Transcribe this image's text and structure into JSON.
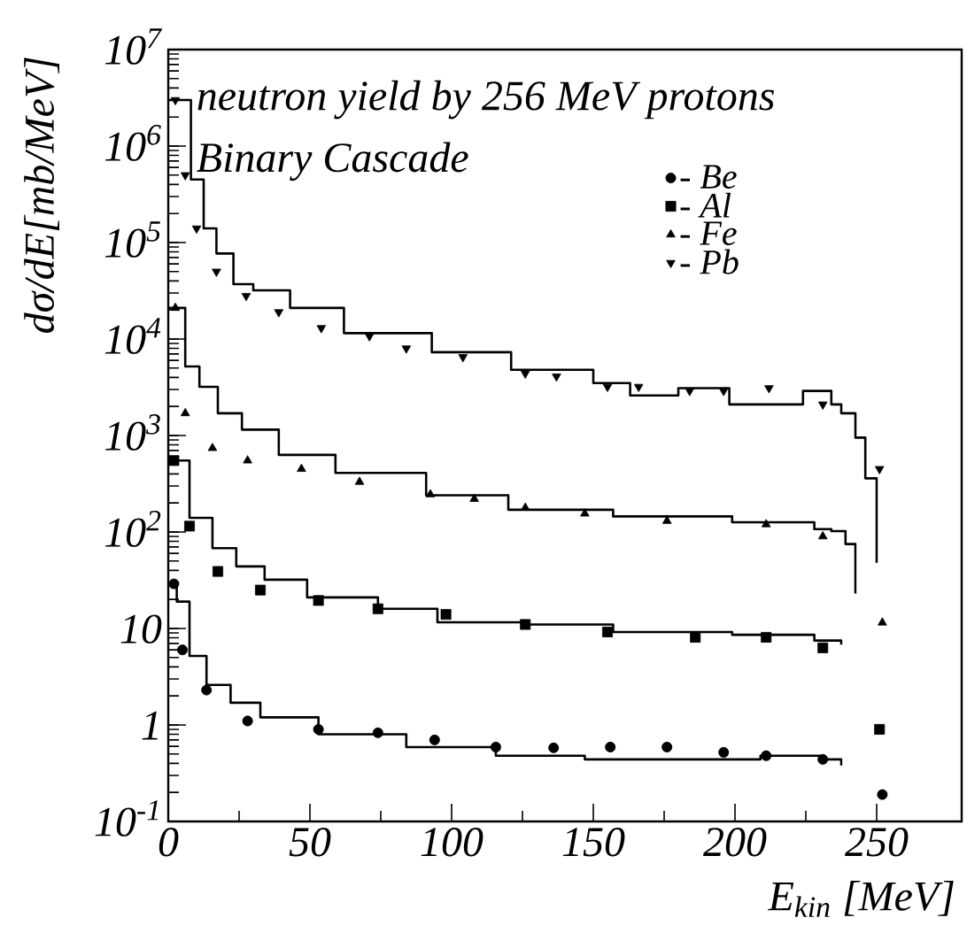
{
  "chart_data": {
    "type": "scatter",
    "title": "neutron yield by 256 MeV protons",
    "subtitle": "Binary Cascade",
    "xlabel": "E$_{kin}$ [MeV]",
    "ylabel": "dσ/dE[mb/MeV]",
    "log": "y",
    "xlim": [
      0,
      280
    ],
    "ylim": [
      0.1,
      10000000
    ],
    "xticks": [
      0,
      50,
      100,
      150,
      200,
      250
    ],
    "yticks": [
      {
        "value": 0.1,
        "label": "10$^{-1}$"
      },
      {
        "value": 1,
        "label": "1"
      },
      {
        "value": 10,
        "label": "10"
      },
      {
        "value": 100,
        "label": "10$^{2}$"
      },
      {
        "value": 1000,
        "label": "10$^{3}$"
      },
      {
        "value": 10000,
        "label": "10$^{4}$"
      },
      {
        "value": 100000,
        "label": "10$^{5}$"
      },
      {
        "value": 1000000,
        "label": "10$^{6}$"
      },
      {
        "value": 10000000,
        "label": "10$^{7}$"
      }
    ],
    "grid": false,
    "legend": "top right",
    "series": [
      {
        "name": "- Be",
        "color": "#000000",
        "marker": "circle",
        "x": [
          2,
          5,
          13.5,
          28,
          53,
          74,
          94,
          115.6,
          136,
          156,
          176,
          196,
          211,
          231,
          252
        ],
        "values": [
          29,
          6,
          2.3,
          1.1,
          0.9,
          0.83,
          0.7,
          0.59,
          0.58,
          0.59,
          0.59,
          0.52,
          0.48,
          0.44,
          0.19
        ]
      },
      {
        "name": "- Al",
        "color": "#000000",
        "marker": "square",
        "x": [
          2,
          7.5,
          17.5,
          32.5,
          53,
          74,
          98,
          126,
          155,
          186,
          211,
          231,
          251
        ],
        "values": [
          550,
          115,
          39,
          25,
          19.5,
          16,
          14,
          11,
          9.2,
          8.1,
          8.1,
          6.3,
          0.9
        ]
      },
      {
        "name": "- Fe",
        "color": "#000000",
        "marker": "triangle",
        "x": [
          2.5,
          6,
          15.6,
          28,
          47,
          67.5,
          92.5,
          108,
          126,
          147,
          176,
          211,
          231,
          252
        ],
        "values": [
          21000,
          1700,
          740,
          550,
          450,
          330,
          245,
          220,
          178,
          155,
          130,
          120,
          90,
          11.5
        ]
      },
      {
        "name": "- Pb",
        "color": "#000000",
        "marker": "triangle-down",
        "x": [
          2.5,
          6,
          10,
          17,
          27.5,
          39,
          54,
          71,
          84,
          104,
          126,
          137,
          155,
          166,
          184,
          196,
          212,
          231,
          251
        ],
        "values": [
          3000000,
          500000,
          140000,
          50000,
          28000,
          19000,
          13000,
          10700,
          8000,
          6500,
          4400,
          4100,
          3200,
          3200,
          2900,
          2900,
          3100,
          2100,
          450
        ]
      },
      {
        "type": "step",
        "color": "#000000",
        "marker": "none",
        "x": [
          0,
          3,
          7.5,
          13.5,
          22,
          32.5,
          53,
          84,
          115.6,
          147,
          178,
          209,
          230,
          237.5
        ],
        "values": [
          29,
          19,
          5.2,
          2.6,
          1.7,
          1.2,
          0.8,
          0.59,
          0.48,
          0.44,
          0.44,
          0.48,
          0.44,
          0.38
        ]
      },
      {
        "type": "step",
        "color": "#000000",
        "marker": "none",
        "x": [
          0,
          7.5,
          15.6,
          24,
          34,
          49,
          74,
          95,
          126,
          157,
          199,
          228,
          237.5
        ],
        "values": [
          550,
          140,
          68,
          44,
          32,
          21,
          16,
          11.6,
          11,
          9.2,
          8.6,
          7.5,
          6.8
        ]
      },
      {
        "type": "step",
        "color": "#000000",
        "marker": "none",
        "x": [
          0,
          6,
          11,
          17.5,
          26,
          39,
          59,
          91,
          120,
          157,
          199,
          228,
          234,
          239,
          242.5
        ],
        "values": [
          21000,
          5200,
          3200,
          1700,
          1150,
          630,
          410,
          240,
          170,
          145,
          126,
          107,
          102,
          75,
          23
        ]
      },
      {
        "type": "step",
        "color": "#000000",
        "marker": "none",
        "x": [
          0,
          8,
          12.5,
          17,
          23,
          30,
          43,
          62,
          93,
          121,
          150,
          163,
          180,
          198,
          224,
          234,
          237.5,
          242.5,
          246,
          250
        ],
        "values": [
          3000000,
          450000,
          140000,
          77000,
          37000,
          32000,
          21000,
          11500,
          7300,
          4800,
          3500,
          2600,
          3100,
          2100,
          2900,
          2100,
          1700,
          950,
          360,
          48
        ]
      }
    ]
  }
}
